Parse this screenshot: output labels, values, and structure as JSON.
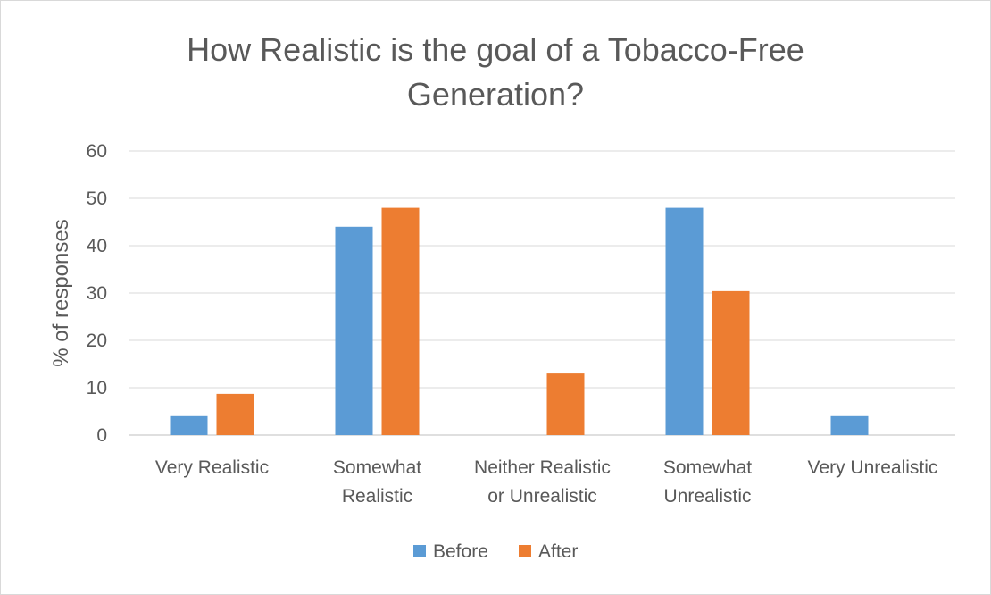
{
  "chart_data": {
    "type": "bar",
    "title_lines": [
      "How Realistic is the goal of a Tobacco-Free",
      "Generation?"
    ],
    "ylabel": "% of responses",
    "xlabel": "",
    "ylim": [
      0,
      60
    ],
    "yticks": [
      "0",
      "10",
      "20",
      "30",
      "40",
      "50",
      "60"
    ],
    "categories": [
      [
        "Very Realistic"
      ],
      [
        "Somewhat",
        "Realistic"
      ],
      [
        "Neither Realistic",
        "or Unrealistic"
      ],
      [
        "Somewhat",
        "Unrealistic"
      ],
      [
        "Very Unrealistic"
      ]
    ],
    "series": [
      {
        "name": "Before",
        "color": "#5b9bd5",
        "values": [
          4,
          44,
          0,
          48,
          4
        ]
      },
      {
        "name": "After",
        "color": "#ed7d31",
        "values": [
          8.7,
          48,
          13,
          30.4,
          0
        ]
      }
    ],
    "grid": true,
    "legend_position": "bottom"
  }
}
